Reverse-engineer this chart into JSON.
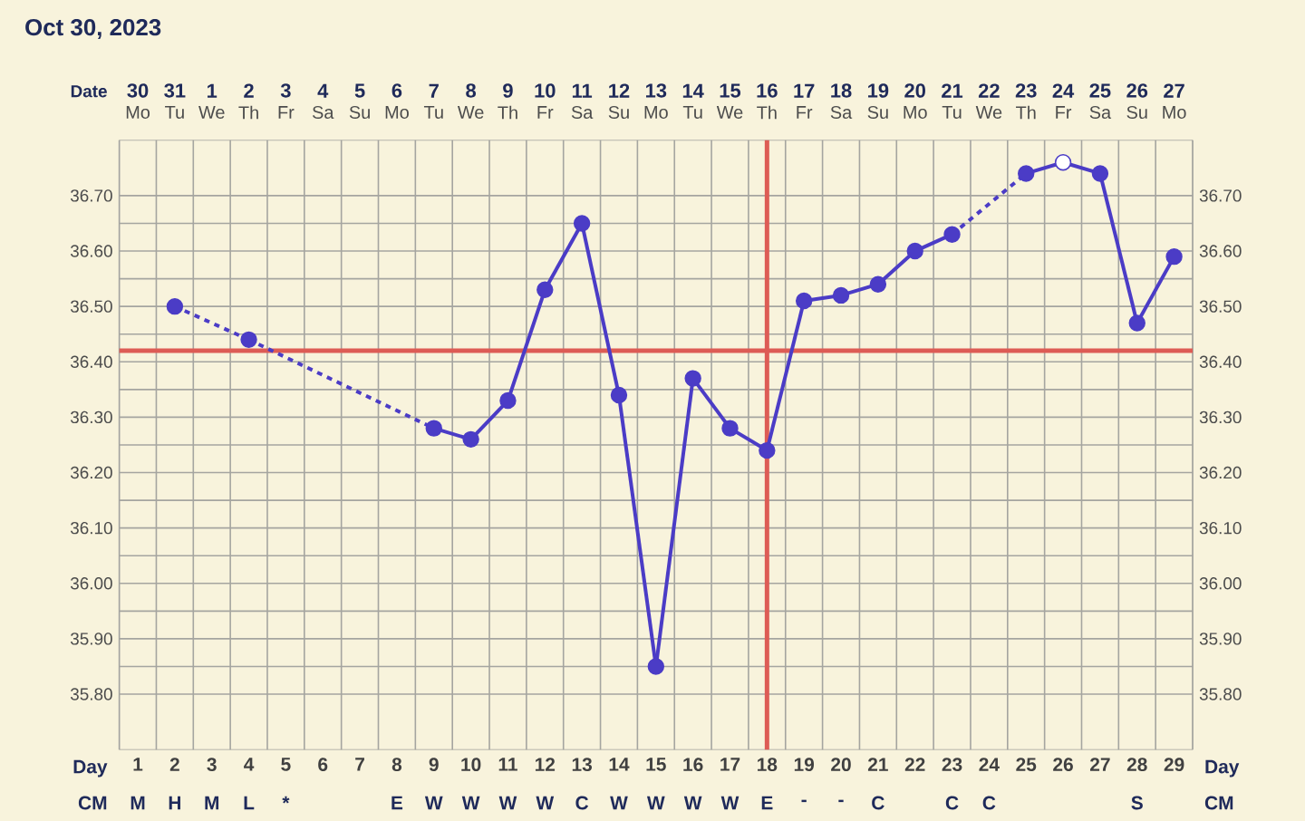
{
  "chart_data": [
    {
      "type": "line",
      "title": "Oct 30, 2023",
      "xlabel": "Day",
      "x2label": "Date",
      "categories": [
        "1",
        "2",
        "3",
        "4",
        "5",
        "6",
        "7",
        "8",
        "9",
        "10",
        "11",
        "12",
        "13",
        "14",
        "15",
        "16",
        "17",
        "18",
        "19",
        "20",
        "21",
        "22",
        "23",
        "24",
        "25",
        "26",
        "27",
        "28",
        "29"
      ],
      "series": [
        {
          "color": "#4b3cc6",
          "colors": [
            "#4b3cc6",
            "#4b3cc6",
            "#4b3cc6",
            "#4b3cc6",
            "#4b3cc6",
            "#4b3cc6",
            "#4b3cc6",
            "#4b3cc6",
            "#4b3cc6",
            "#4b3cc6",
            "#4b3cc6",
            "#4b3cc6",
            "#4b3cc6",
            "#4b3cc6",
            "#4b3cc6",
            "#4b3cc6",
            "#4b3cc6",
            "#4b3cc6",
            "#4b3cc6",
            "#4b3cc6",
            "#4b3cc6",
            "#4b3cc6",
            "#4b3cc6",
            "#4b3cc6",
            "#4b3cc6",
            "#ffffff",
            "#4b3cc6",
            "#4b3cc6",
            "#4b3cc6"
          ],
          "values": [
            null,
            36.5,
            null,
            36.44,
            null,
            null,
            null,
            null,
            36.28,
            36.26,
            36.33,
            36.53,
            36.65,
            36.34,
            35.85,
            36.37,
            36.28,
            36.24,
            36.51,
            36.52,
            36.54,
            36.6,
            36.63,
            null,
            36.74,
            36.76,
            36.74,
            36.47,
            36.59
          ]
        }
      ],
      "marker": "circle",
      "ylim": [
        35.7,
        36.8
      ],
      "yticks": [
        {
          "value": 35.8,
          "label": "35.80"
        },
        {
          "value": 35.9,
          "label": "35.90"
        },
        {
          "value": 36.0,
          "label": "36.00"
        },
        {
          "value": 36.1,
          "label": "36.10"
        },
        {
          "value": 36.2,
          "label": "36.20"
        },
        {
          "value": 36.3,
          "label": "36.30"
        },
        {
          "value": 36.4,
          "label": "36.40"
        },
        {
          "value": 36.5,
          "label": "36.50"
        },
        {
          "value": 36.6,
          "label": "36.60"
        },
        {
          "value": 36.7,
          "label": "36.70"
        }
      ],
      "y2lim": [
        35.7,
        36.8
      ],
      "y2ticks": [
        {
          "value": 35.8,
          "label": "35.80"
        },
        {
          "value": 35.9,
          "label": "35.90"
        },
        {
          "value": 36.0,
          "label": "36.00"
        },
        {
          "value": 36.1,
          "label": "36.10"
        },
        {
          "value": 36.2,
          "label": "36.20"
        },
        {
          "value": 36.3,
          "label": "36.30"
        },
        {
          "value": 36.4,
          "label": "36.40"
        },
        {
          "value": 36.5,
          "label": "36.50"
        },
        {
          "value": 36.6,
          "label": "36.60"
        },
        {
          "value": 36.7,
          "label": "36.70"
        }
      ],
      "x2lim": [
        "2023-10-29T12:00",
        "2023-11-27T12:00"
      ],
      "x2ticks": [
        {
          "value": "2023-10-30",
          "label": "30"
        },
        {
          "value": "2023-10-31",
          "label": "31"
        },
        {
          "value": "2023-11-01",
          "label": "1"
        },
        {
          "value": "2023-11-02",
          "label": "2"
        },
        {
          "value": "2023-11-03",
          "label": "3"
        },
        {
          "value": "2023-11-04",
          "label": "4"
        },
        {
          "value": "2023-11-05",
          "label": "5"
        },
        {
          "value": "2023-11-06",
          "label": "6"
        },
        {
          "value": "2023-11-07",
          "label": "7"
        },
        {
          "value": "2023-11-08",
          "label": "8"
        },
        {
          "value": "2023-11-09",
          "label": "9"
        },
        {
          "value": "2023-11-10",
          "label": "10"
        },
        {
          "value": "2023-11-11",
          "label": "11"
        },
        {
          "value": "2023-11-12",
          "label": "12"
        },
        {
          "value": "2023-11-13",
          "label": "13"
        },
        {
          "value": "2023-11-14",
          "label": "14"
        },
        {
          "value": "2023-11-15",
          "label": "15"
        },
        {
          "value": "2023-11-16",
          "label": "16"
        },
        {
          "value": "2023-11-17",
          "label": "17"
        },
        {
          "value": "2023-11-18",
          "label": "18"
        },
        {
          "value": "2023-11-19",
          "label": "19"
        },
        {
          "value": "2023-11-20",
          "label": "20"
        },
        {
          "value": "2023-11-21",
          "label": "21"
        },
        {
          "value": "2023-11-22",
          "label": "22"
        },
        {
          "value": "2023-11-23",
          "label": "23"
        },
        {
          "value": "2023-11-24",
          "label": "24"
        },
        {
          "value": "2023-11-25",
          "label": "25"
        },
        {
          "value": "2023-11-26",
          "label": "26"
        },
        {
          "value": "2023-11-27",
          "label": "27"
        }
      ],
      "ref_lines": [
        {
          "axis": "y",
          "value": 36.42,
          "color": "#dd5c55"
        },
        {
          "axis": "x",
          "value": "18",
          "color": "#dd5c55"
        }
      ],
      "grid": true
    },
    {
      "type": "other",
      "categories": [
        "Mo",
        "Tu",
        "We",
        "Th",
        "Fr",
        "Sa",
        "Su",
        "Mo",
        "Tu",
        "We",
        "Th",
        "Fr",
        "Sa",
        "Su",
        "Mo",
        "Tu",
        "We",
        "Th",
        "Fr",
        "Sa",
        "Su",
        "Mo",
        "Tu",
        "We",
        "Th",
        "Fr",
        "Sa",
        "Su",
        "Mo"
      ]
    },
    {
      "type": "other",
      "xlabel": "CM",
      "categories": [
        "M",
        "H",
        "M",
        "L",
        "*",
        null,
        null,
        "E",
        "W",
        "W",
        "W",
        "W",
        "C",
        "W",
        "W",
        "W",
        "W",
        "E",
        "-",
        "-",
        "C",
        null,
        "C",
        "C",
        null,
        null,
        null,
        "S",
        null
      ]
    }
  ]
}
